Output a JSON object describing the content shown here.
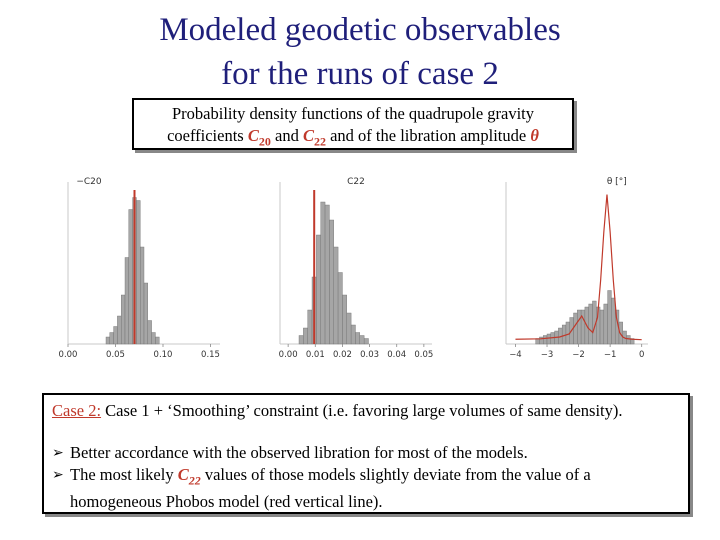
{
  "title": {
    "line1": "Modeled geodetic observables",
    "line2": "for the runs of case 2"
  },
  "pdf_box": {
    "line1": "Probability density functions of the quadrupole gravity",
    "line2_pre": "coefficients ",
    "c20_main": "C",
    "c20_sub": "20",
    "and1": " and ",
    "c22_main": "C",
    "c22_sub": "22",
    "line2_mid": " and of the libration amplitude ",
    "theta": "θ"
  },
  "case_box": {
    "label": "Case 2:",
    "text": " Case 1 + ‘Smoothing’ constraint (i.e. favoring large volumes of same density).",
    "bullet1": "Better accordance with the observed libration for most of the models.",
    "bullet2_pre": "The most likely ",
    "bullet2_c": "C",
    "bullet2_sub": "22",
    "bullet2_post": " values of those models slightly deviate from the value of a",
    "bullet2_line2": "homogeneous Phobos model (red vertical line)."
  },
  "colors": {
    "title": "#1f1f7a",
    "accent_red": "#c0392b",
    "bar_fill": "#a6a6a6",
    "bar_stroke": "#6e6e6e"
  },
  "chart_data": [
    {
      "type": "bar",
      "title": "−C20",
      "xlim": [
        0.0,
        0.16
      ],
      "ylim": [
        0,
        1
      ],
      "xticks": [
        "0.00",
        "0.05",
        "0.10",
        "0.15"
      ],
      "tick_values": [
        0.0,
        0.05,
        0.1,
        0.15
      ],
      "bin_width": 0.004,
      "x": [
        0.042,
        0.046,
        0.05,
        0.054,
        0.058,
        0.062,
        0.066,
        0.07,
        0.074,
        0.078,
        0.082,
        0.086,
        0.09,
        0.094
      ],
      "values": [
        0.02,
        0.05,
        0.09,
        0.16,
        0.3,
        0.55,
        0.87,
        0.95,
        0.93,
        0.62,
        0.38,
        0.13,
        0.05,
        0.02
      ],
      "reference_line": {
        "x": 0.07,
        "color": "#c0392b"
      },
      "grid": false
    },
    {
      "type": "bar",
      "title": "C22",
      "xlim": [
        -0.003,
        0.053
      ],
      "ylim": [
        0,
        1
      ],
      "xticks": [
        "0.00",
        "0.01",
        "0.02",
        "0.03",
        "0.04",
        "0.05"
      ],
      "tick_values": [
        0.0,
        0.01,
        0.02,
        0.03,
        0.04,
        0.05
      ],
      "bin_width": 0.0016,
      "x": [
        0.0048,
        0.0064,
        0.008,
        0.0096,
        0.0112,
        0.0128,
        0.0144,
        0.016,
        0.0176,
        0.0192,
        0.0208,
        0.0224,
        0.024,
        0.0256,
        0.0272,
        0.0288
      ],
      "values": [
        0.03,
        0.08,
        0.2,
        0.42,
        0.7,
        0.92,
        0.9,
        0.8,
        0.62,
        0.45,
        0.3,
        0.18,
        0.1,
        0.05,
        0.03,
        0.01
      ],
      "reference_line": {
        "x": 0.0096,
        "color": "#c0392b"
      },
      "grid": false
    },
    {
      "type": "bar",
      "title": "θ [°]",
      "xlim": [
        -4.3,
        0.2
      ],
      "ylim": [
        0,
        1
      ],
      "xticks": [
        "−4",
        "−3",
        "−2",
        "−1",
        "0"
      ],
      "tick_values": [
        -4,
        -3,
        -2,
        -1,
        0
      ],
      "bin_width": 0.12,
      "x": [
        -3.3,
        -3.18,
        -3.06,
        -2.94,
        -2.82,
        -2.7,
        -2.58,
        -2.46,
        -2.34,
        -2.22,
        -2.1,
        -1.98,
        -1.86,
        -1.74,
        -1.62,
        -1.5,
        -1.38,
        -1.26,
        -1.14,
        -1.02,
        -0.9,
        -0.78,
        -0.66,
        -0.54,
        -0.42,
        -0.3
      ],
      "values": [
        0.01,
        0.02,
        0.03,
        0.04,
        0.05,
        0.06,
        0.08,
        0.1,
        0.12,
        0.15,
        0.18,
        0.2,
        0.2,
        0.22,
        0.24,
        0.26,
        0.22,
        0.2,
        0.24,
        0.33,
        0.28,
        0.2,
        0.12,
        0.06,
        0.03,
        0.01
      ],
      "overlay_curve": {
        "color": "#c0392b",
        "x": [
          -4.0,
          -3.2,
          -2.6,
          -2.3,
          -2.1,
          -1.9,
          -1.7,
          -1.55,
          -1.4,
          -1.3,
          -1.2,
          -1.1,
          -1.0,
          -0.9,
          -0.8,
          -0.7,
          -0.6,
          -0.5,
          -0.3,
          0.0
        ],
        "y": [
          0.005,
          0.008,
          0.02,
          0.04,
          0.1,
          0.16,
          0.08,
          0.05,
          0.15,
          0.4,
          0.72,
          0.97,
          0.72,
          0.4,
          0.15,
          0.05,
          0.02,
          0.01,
          0.005,
          0.002
        ]
      },
      "grid": false
    }
  ]
}
